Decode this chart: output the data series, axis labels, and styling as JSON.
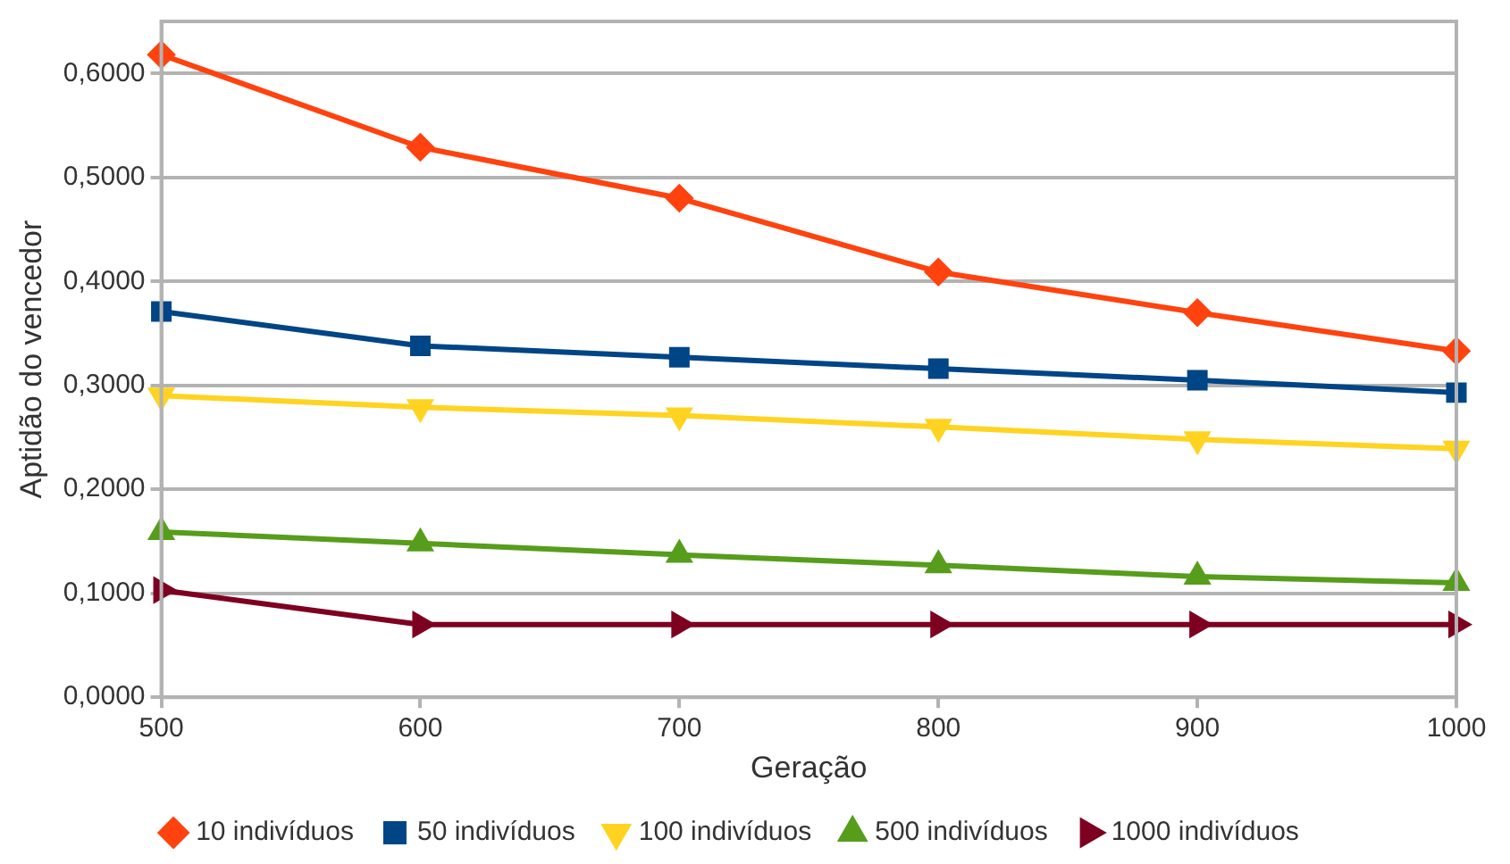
{
  "chart_data": {
    "type": "line",
    "xlabel": "Geração",
    "ylabel": "Aptidão do vencedor",
    "x": [
      500,
      600,
      700,
      800,
      900,
      1000
    ],
    "xlim": [
      500,
      1000
    ],
    "xticks": [
      500,
      600,
      700,
      800,
      900,
      1000
    ],
    "ylim": [
      0,
      0.65
    ],
    "yticks": [
      {
        "value": 0,
        "label": "0,0000"
      },
      {
        "value": 0.1,
        "label": "0,1000"
      },
      {
        "value": 0.2,
        "label": "0,2000"
      },
      {
        "value": 0.3,
        "label": "0,3000"
      },
      {
        "value": 0.4,
        "label": "0,4000"
      },
      {
        "value": 0.5,
        "label": "0,5000"
      },
      {
        "value": 0.6,
        "label": "0,6000"
      }
    ],
    "grid": "y",
    "legend": "bottom",
    "line_style": "solid",
    "series": [
      {
        "name": "10 indivíduos",
        "color": "#ff420e",
        "marker": "diamond",
        "values": [
          0.618,
          0.529,
          0.48,
          0.409,
          0.37,
          0.333
        ]
      },
      {
        "name": "50 indivíduos",
        "color": "#004586",
        "marker": "square",
        "values": [
          0.371,
          0.338,
          0.327,
          0.316,
          0.305,
          0.293
        ]
      },
      {
        "name": "100 indivíduos",
        "color": "#ffd320",
        "marker": "triangle-down",
        "values": [
          0.29,
          0.279,
          0.271,
          0.26,
          0.248,
          0.239
        ]
      },
      {
        "name": "500 indivíduos",
        "color": "#579d1c",
        "marker": "triangle",
        "values": [
          0.159,
          0.148,
          0.137,
          0.127,
          0.116,
          0.11
        ]
      },
      {
        "name": "1000 indivíduos",
        "color": "#7e0021",
        "marker": "triangle-right",
        "values": [
          0.103,
          0.07,
          0.07,
          0.07,
          0.07,
          0.07
        ]
      }
    ]
  }
}
